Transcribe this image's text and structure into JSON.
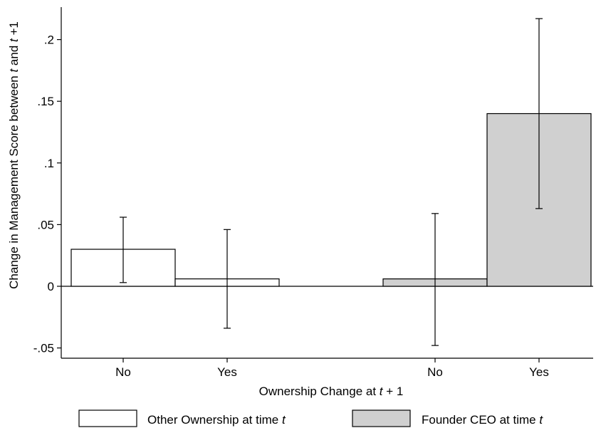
{
  "chart_data": {
    "type": "bar",
    "ylabel": {
      "parts": [
        {
          "text": "Change in Management Score between ",
          "italic": false
        },
        {
          "text": "t",
          "italic": true
        },
        {
          "text": " and ",
          "italic": false
        },
        {
          "text": "t",
          "italic": true
        },
        {
          "text": " +1",
          "italic": false
        }
      ]
    },
    "xlabel": {
      "parts": [
        {
          "text": "Ownership Change at ",
          "italic": false
        },
        {
          "text": "t",
          "italic": true
        },
        {
          "text": " + 1",
          "italic": false
        }
      ]
    },
    "ylim": [
      -0.06,
      0.225
    ],
    "yticks": [
      {
        "value": -0.05,
        "label": "-.05"
      },
      {
        "value": 0,
        "label": "0"
      },
      {
        "value": 0.05,
        "label": ".05"
      },
      {
        "value": 0.1,
        "label": ".1"
      },
      {
        "value": 0.15,
        "label": ".15"
      },
      {
        "value": 0.2,
        "label": ".2"
      }
    ],
    "series": [
      {
        "name": {
          "parts": [
            {
              "text": "Other Ownership at time ",
              "italic": false
            },
            {
              "text": "t",
              "italic": true
            }
          ]
        },
        "color": "#ffffff",
        "bars": [
          {
            "category": "No",
            "value": 0.03,
            "ci_low": 0.003,
            "ci_high": 0.056
          },
          {
            "category": "Yes",
            "value": 0.006,
            "ci_low": -0.034,
            "ci_high": 0.046
          }
        ]
      },
      {
        "name": {
          "parts": [
            {
              "text": "Founder CEO at time ",
              "italic": false
            },
            {
              "text": "t",
              "italic": true
            }
          ]
        },
        "color": "#d0d0d0",
        "bars": [
          {
            "category": "No",
            "value": 0.006,
            "ci_low": -0.048,
            "ci_high": 0.059
          },
          {
            "category": "Yes",
            "value": 0.14,
            "ci_low": 0.063,
            "ci_high": 0.217
          }
        ]
      }
    ],
    "legend_position": "bottom",
    "grid": false
  }
}
